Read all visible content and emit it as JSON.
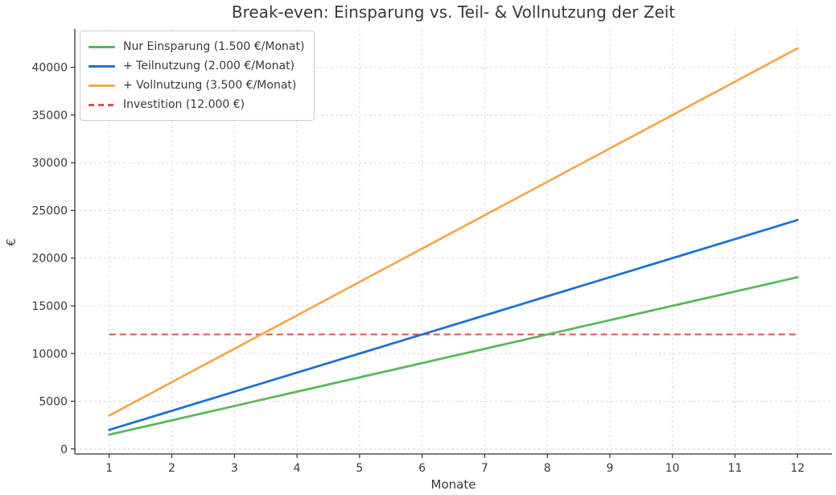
{
  "chart_data": {
    "type": "line",
    "title": "Break-even: Einsparung vs. Teil- & Vollnutzung der Zeit",
    "xlabel": "Monate",
    "ylabel": "€",
    "x": [
      1,
      2,
      3,
      4,
      5,
      6,
      7,
      8,
      9,
      10,
      11,
      12
    ],
    "xlim": [
      0.45,
      12.55
    ],
    "ylim": [
      -525,
      44025
    ],
    "xticks": [
      1,
      2,
      3,
      4,
      5,
      6,
      7,
      8,
      9,
      10,
      11,
      12
    ],
    "yticks": [
      0,
      5000,
      10000,
      15000,
      20000,
      25000,
      30000,
      35000,
      40000
    ],
    "grid": true,
    "grid_style": "dashed",
    "legend_position": "upper-left",
    "series": [
      {
        "name": "Nur Einsparung (1.500 €/Monat)",
        "color": "#5bb75c",
        "line_style": "solid",
        "monthly_rate_eur": 1500,
        "values": [
          1500,
          3000,
          4500,
          6000,
          7500,
          9000,
          10500,
          12000,
          13500,
          15000,
          16500,
          18000
        ]
      },
      {
        "name": "+ Teilnutzung (2.000 €/Monat)",
        "color": "#1e73d2",
        "line_style": "solid",
        "monthly_rate_eur": 2000,
        "values": [
          2000,
          4000,
          6000,
          8000,
          10000,
          12000,
          14000,
          16000,
          18000,
          20000,
          22000,
          24000
        ]
      },
      {
        "name": "+ Vollnutzung (3.500 €/Monat)",
        "color": "#f5a94f",
        "line_style": "solid",
        "monthly_rate_eur": 3500,
        "values": [
          3500,
          7000,
          10500,
          14000,
          17500,
          21000,
          24500,
          28000,
          31500,
          35000,
          38500,
          42000
        ]
      }
    ],
    "reference_line": {
      "name": "Investition (12.000 €)",
      "color": "#d9534f",
      "line_style": "dashed",
      "value": 12000
    },
    "colors": {
      "grid": "#dcdcdc",
      "spine": "#333333",
      "text": "#3a3a3a"
    }
  }
}
